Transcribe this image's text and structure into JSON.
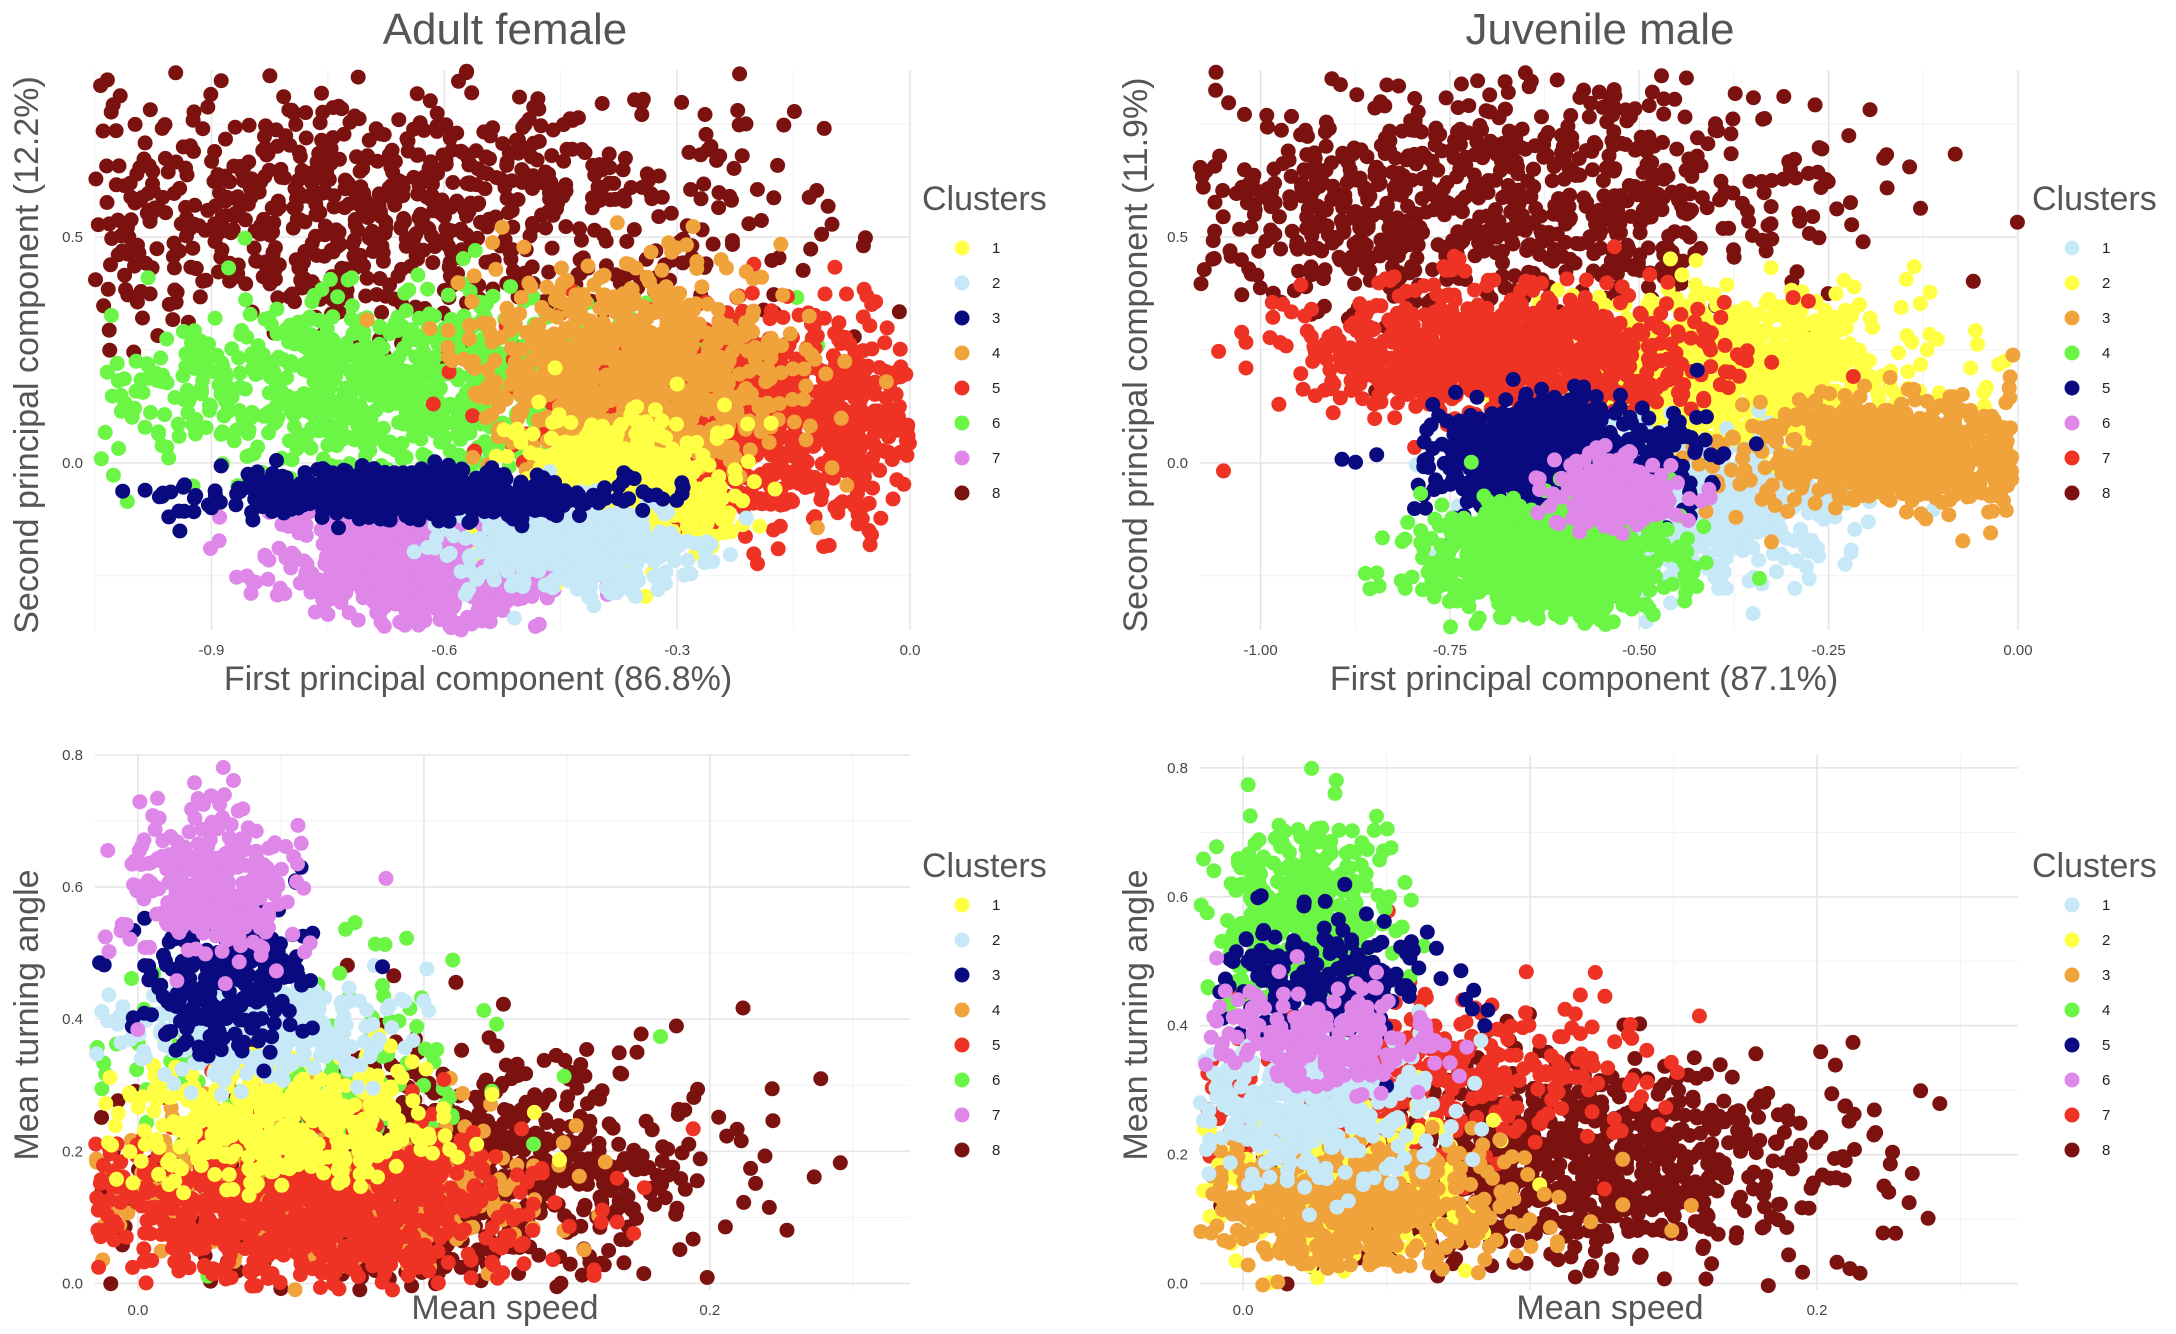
{
  "chart_data": [
    {
      "type": "scatter",
      "title": "Adult female",
      "xlabel": "First  principal component (86.8%)",
      "ylabel": "Second  principal component (12.2%)",
      "xlim": [
        -1.05,
        0.0
      ],
      "ylim": [
        -0.37,
        0.87
      ],
      "x_ticks": [
        -0.9,
        -0.6,
        -0.3,
        0.0
      ],
      "x_tick_labels": [
        "-0.9",
        "-0.6",
        "-0.3",
        "0.0"
      ],
      "y_ticks": [
        0.0,
        0.5
      ],
      "y_tick_labels": [
        "0.0",
        "0.5"
      ],
      "grid": true,
      "legend": {
        "title": "Clusters",
        "position": "right"
      },
      "series": [
        {
          "name": "1",
          "color": "#FFFF44",
          "points": 700,
          "regions": [
            {
              "center": [
                -0.38,
                -0.06
              ],
              "spread": [
                0.07,
                0.07
              ]
            }
          ]
        },
        {
          "name": "2",
          "color": "#C6E8F7",
          "points": 500,
          "regions": [
            {
              "center": [
                -0.44,
                -0.18
              ],
              "spread": [
                0.07,
                0.05
              ]
            }
          ]
        },
        {
          "name": "3",
          "color": "#0A0A80",
          "points": 700,
          "regions": [
            {
              "center": [
                -0.64,
                -0.07
              ],
              "spread": [
                0.12,
                0.025
              ]
            }
          ]
        },
        {
          "name": "4",
          "color": "#F0A33A",
          "points": 1000,
          "regions": [
            {
              "center": [
                -0.36,
                0.2
              ],
              "spread": [
                0.1,
                0.11
              ]
            }
          ]
        },
        {
          "name": "5",
          "color": "#EE3224",
          "points": 1200,
          "regions": [
            {
              "center": [
                -0.19,
                0.09
              ],
              "spread": [
                0.14,
                0.12
              ]
            }
          ]
        },
        {
          "name": "6",
          "color": "#6BF545",
          "points": 1800,
          "regions": [
            {
              "center": [
                -0.64,
                0.17
              ],
              "spread": [
                0.2,
                0.1
              ]
            }
          ]
        },
        {
          "name": "7",
          "color": "#DE87E8",
          "points": 700,
          "regions": [
            {
              "center": [
                -0.63,
                -0.22
              ],
              "spread": [
                0.09,
                0.07
              ]
            }
          ]
        },
        {
          "name": "8",
          "color": "#7B1210",
          "points": 3000,
          "regions": [
            {
              "center": [
                -0.7,
                0.56
              ],
              "spread": [
                0.28,
                0.14
              ]
            }
          ]
        }
      ]
    },
    {
      "type": "scatter",
      "title": "Juvenile male",
      "xlabel": "First  principal component (87.1%)",
      "ylabel": "Second  principal component (11.9%)",
      "xlim": [
        -1.08,
        0.0
      ],
      "ylim": [
        -0.37,
        0.87
      ],
      "x_ticks": [
        -1.0,
        -0.75,
        -0.5,
        -0.25,
        0.0
      ],
      "x_tick_labels": [
        "-1.00",
        "-0.75",
        "-0.50",
        "-0.25",
        "0.00"
      ],
      "y_ticks": [
        0.0,
        0.5
      ],
      "y_tick_labels": [
        "0.0",
        "0.5"
      ],
      "grid": true,
      "legend": {
        "title": "Clusters",
        "position": "right"
      },
      "series": [
        {
          "name": "1",
          "color": "#C6E8F7",
          "points": 800,
          "regions": [
            {
              "center": [
                -0.45,
                -0.1
              ],
              "spread": [
                0.1,
                0.07
              ]
            }
          ]
        },
        {
          "name": "2",
          "color": "#FFFF44",
          "points": 1300,
          "regions": [
            {
              "center": [
                -0.38,
                0.2
              ],
              "spread": [
                0.12,
                0.09
              ]
            }
          ]
        },
        {
          "name": "3",
          "color": "#F0A33A",
          "points": 700,
          "regions": [
            {
              "center": [
                -0.16,
                0.02
              ],
              "spread": [
                0.1,
                0.06
              ]
            }
          ]
        },
        {
          "name": "4",
          "color": "#6BF545",
          "points": 900,
          "regions": [
            {
              "center": [
                -0.62,
                -0.22
              ],
              "spread": [
                0.08,
                0.06
              ]
            }
          ]
        },
        {
          "name": "5",
          "color": "#0A0A80",
          "points": 800,
          "regions": [
            {
              "center": [
                -0.61,
                0.0
              ],
              "spread": [
                0.08,
                0.07
              ]
            }
          ]
        },
        {
          "name": "6",
          "color": "#DE87E8",
          "points": 250,
          "regions": [
            {
              "center": [
                -0.53,
                -0.07
              ],
              "spread": [
                0.04,
                0.04
              ]
            }
          ]
        },
        {
          "name": "7",
          "color": "#EE3224",
          "points": 1200,
          "regions": [
            {
              "center": [
                -0.68,
                0.24
              ],
              "spread": [
                0.13,
                0.07
              ]
            }
          ]
        },
        {
          "name": "8",
          "color": "#7B1210",
          "points": 3000,
          "regions": [
            {
              "center": [
                -0.72,
                0.58
              ],
              "spread": [
                0.24,
                0.13
              ]
            }
          ]
        }
      ]
    },
    {
      "type": "scatter",
      "xlabel": "Mean speed",
      "ylabel": "Mean turning angle",
      "xlim": [
        -0.015,
        0.27
      ],
      "ylim": [
        -0.01,
        0.8
      ],
      "x_ticks": [
        0.0,
        0.1,
        0.2
      ],
      "x_tick_labels": [
        "0.0",
        "",
        "0.2"
      ],
      "y_ticks": [
        0.0,
        0.2,
        0.4,
        0.6,
        0.8
      ],
      "y_tick_labels": [
        "0.0",
        "0.2",
        "0.4",
        "0.6",
        "0.8"
      ],
      "grid": true,
      "legend": {
        "title": "Clusters",
        "position": "right"
      },
      "series": [
        {
          "name": "1",
          "color": "#FFFF44",
          "points": 450,
          "regions": [
            {
              "center": [
                0.05,
                0.25
              ],
              "spread": [
                0.03,
                0.05
              ]
            }
          ]
        },
        {
          "name": "2",
          "color": "#C6E8F7",
          "points": 300,
          "regions": [
            {
              "center": [
                0.04,
                0.38
              ],
              "spread": [
                0.025,
                0.04
              ]
            }
          ]
        },
        {
          "name": "3",
          "color": "#0A0A80",
          "points": 250,
          "regions": [
            {
              "center": [
                0.03,
                0.46
              ],
              "spread": [
                0.015,
                0.06
              ]
            }
          ]
        },
        {
          "name": "4",
          "color": "#F0A33A",
          "points": 500,
          "regions": [
            {
              "center": [
                0.06,
                0.14
              ],
              "spread": [
                0.04,
                0.06
              ]
            }
          ]
        },
        {
          "name": "5",
          "color": "#EE3224",
          "points": 900,
          "regions": [
            {
              "center": [
                0.055,
                0.12
              ],
              "spread": [
                0.04,
                0.06
              ]
            }
          ]
        },
        {
          "name": "6",
          "color": "#6BF545",
          "points": 250,
          "regions": [
            {
              "center": [
                0.05,
                0.3
              ],
              "spread": [
                0.04,
                0.1
              ]
            }
          ]
        },
        {
          "name": "7",
          "color": "#DE87E8",
          "points": 300,
          "regions": [
            {
              "center": [
                0.025,
                0.6
              ],
              "spread": [
                0.015,
                0.06
              ]
            }
          ]
        },
        {
          "name": "8",
          "color": "#7B1210",
          "points": 1400,
          "regions": [
            {
              "center": [
                0.1,
                0.17
              ],
              "spread": [
                0.05,
                0.09
              ]
            }
          ]
        }
      ]
    },
    {
      "type": "scatter",
      "xlabel": "Mean speed",
      "ylabel": "Mean turning angle",
      "xlim": [
        -0.015,
        0.27
      ],
      "ylim": [
        -0.01,
        0.82
      ],
      "x_ticks": [
        0.0,
        0.1,
        0.2
      ],
      "x_tick_labels": [
        "0.0",
        "",
        "0.2"
      ],
      "y_ticks": [
        0.0,
        0.2,
        0.4,
        0.6,
        0.8
      ],
      "y_tick_labels": [
        "0.0",
        "0.2",
        "0.4",
        "0.6",
        "0.8"
      ],
      "grid": true,
      "legend": {
        "title": "Clusters",
        "position": "right"
      },
      "series": [
        {
          "name": "1",
          "color": "#C6E8F7",
          "points": 400,
          "regions": [
            {
              "center": [
                0.025,
                0.28
              ],
              "spread": [
                0.02,
                0.06
              ]
            }
          ]
        },
        {
          "name": "2",
          "color": "#FFFF44",
          "points": 300,
          "regions": [
            {
              "center": [
                0.03,
                0.15
              ],
              "spread": [
                0.025,
                0.06
              ]
            }
          ]
        },
        {
          "name": "3",
          "color": "#F0A33A",
          "points": 500,
          "regions": [
            {
              "center": [
                0.04,
                0.12
              ],
              "spread": [
                0.03,
                0.05
              ]
            }
          ]
        },
        {
          "name": "4",
          "color": "#6BF545",
          "points": 400,
          "regions": [
            {
              "center": [
                0.02,
                0.58
              ],
              "spread": [
                0.015,
                0.07
              ]
            }
          ]
        },
        {
          "name": "5",
          "color": "#0A0A80",
          "points": 200,
          "regions": [
            {
              "center": [
                0.03,
                0.46
              ],
              "spread": [
                0.02,
                0.05
              ]
            }
          ]
        },
        {
          "name": "6",
          "color": "#DE87E8",
          "points": 200,
          "regions": [
            {
              "center": [
                0.03,
                0.38
              ],
              "spread": [
                0.02,
                0.04
              ]
            }
          ]
        },
        {
          "name": "7",
          "color": "#EE3224",
          "points": 400,
          "regions": [
            {
              "center": [
                0.06,
                0.32
              ],
              "spread": [
                0.04,
                0.07
              ]
            }
          ]
        },
        {
          "name": "8",
          "color": "#7B1210",
          "points": 1500,
          "regions": [
            {
              "center": [
                0.11,
                0.19
              ],
              "spread": [
                0.05,
                0.08
              ]
            }
          ]
        }
      ]
    }
  ]
}
